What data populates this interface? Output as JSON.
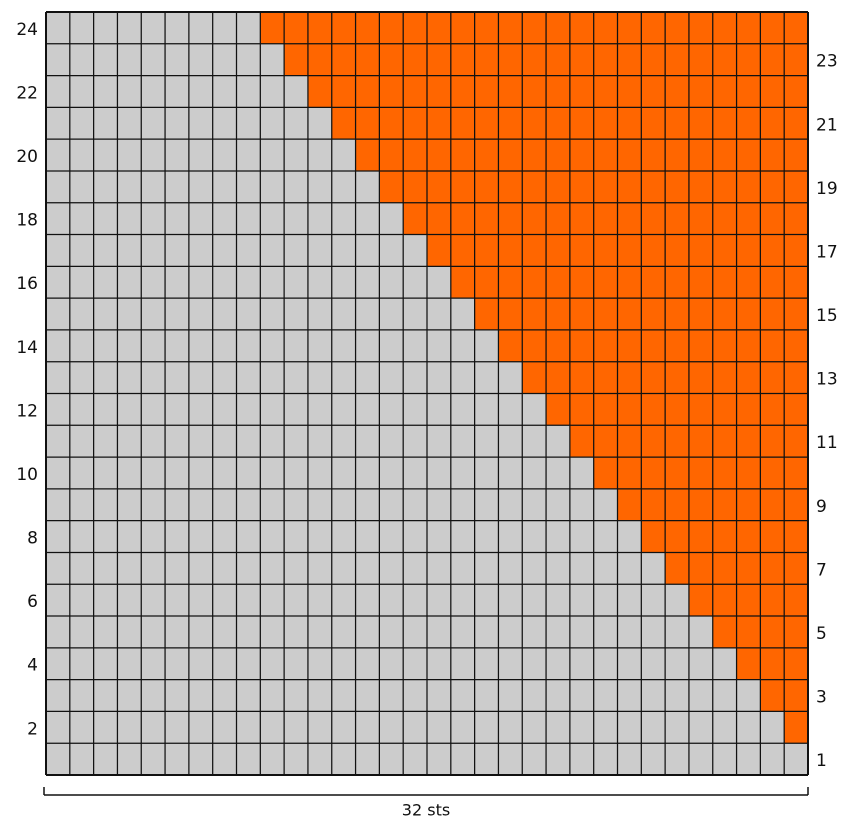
{
  "chart_data": {
    "type": "diagram",
    "stitch_count": 32,
    "row_count": 24,
    "width_label": "32 sts",
    "colors": {
      "background_stitch": "#cccccc",
      "contrast_stitch": "#ff6600",
      "grid_line": "#111111"
    },
    "left_row_labels": [
      "2",
      "4",
      "6",
      "8",
      "10",
      "12",
      "14",
      "16",
      "18",
      "20",
      "22",
      "24"
    ],
    "right_row_labels": [
      "1",
      "3",
      "5",
      "7",
      "9",
      "11",
      "13",
      "15",
      "17",
      "19",
      "21",
      "23"
    ],
    "orange_stitches_per_row": [
      0,
      1,
      2,
      3,
      4,
      5,
      6,
      7,
      8,
      9,
      10,
      11,
      12,
      13,
      14,
      15,
      16,
      17,
      18,
      19,
      20,
      21,
      22,
      23
    ]
  }
}
